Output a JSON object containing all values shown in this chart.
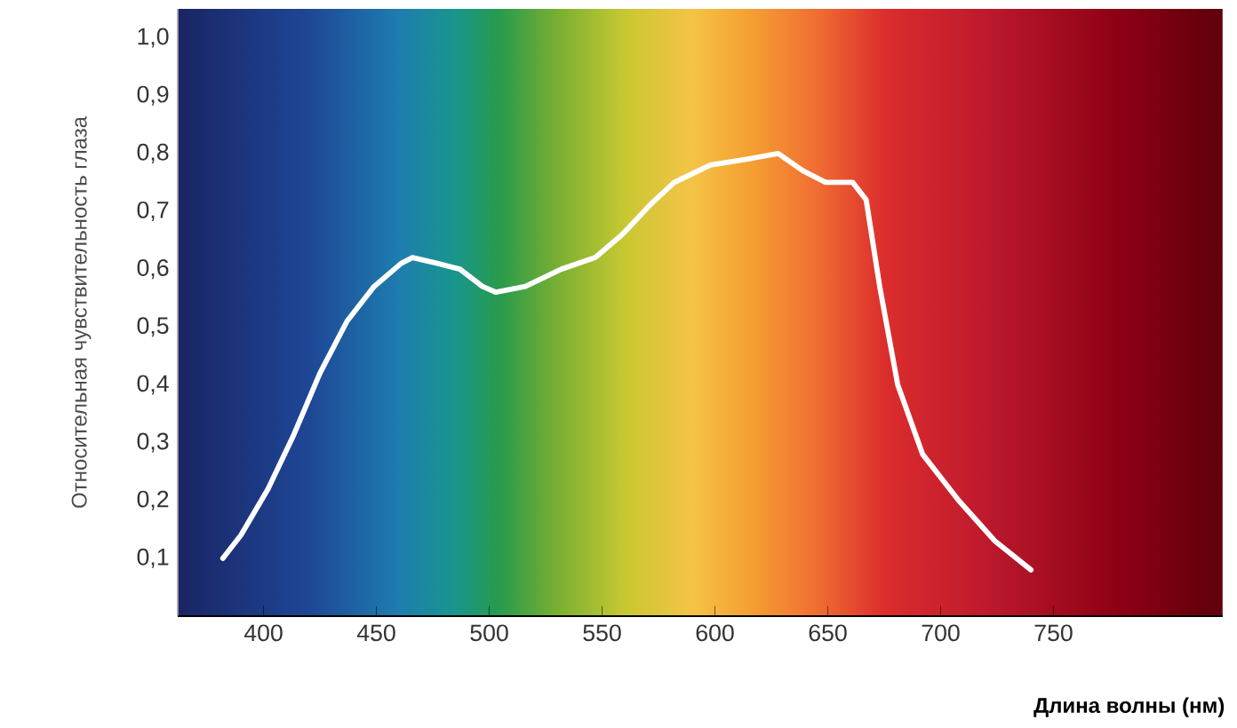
{
  "chart_data": {
    "type": "line",
    "xlabel": "Длина волны (нм)",
    "ylabel": "Относительная чувствительность глаза",
    "x": [
      382,
      390,
      402,
      413,
      425,
      437,
      449,
      461,
      466,
      477,
      487,
      497,
      503,
      516,
      532,
      547,
      559,
      571,
      582,
      598,
      614,
      628,
      639,
      649,
      661,
      667,
      673,
      681,
      692,
      708,
      724,
      740
    ],
    "series": [
      {
        "color": "#ffffff",
        "values": [
          0.1,
          0.14,
          0.22,
          0.31,
          0.42,
          0.51,
          0.57,
          0.61,
          0.62,
          0.61,
          0.6,
          0.57,
          0.56,
          0.57,
          0.6,
          0.62,
          0.66,
          0.71,
          0.75,
          0.78,
          0.79,
          0.8,
          0.77,
          0.75,
          0.75,
          0.72,
          0.57,
          0.4,
          0.28,
          0.2,
          0.13,
          0.08
        ]
      }
    ],
    "xlim": [
      362,
      825
    ],
    "ylim": [
      0,
      1.05
    ],
    "xticks": [
      400,
      450,
      500,
      550,
      600,
      650,
      700,
      750
    ],
    "yticks": [
      {
        "value": 0.1,
        "label": "0,1"
      },
      {
        "value": 0.2,
        "label": "0,2"
      },
      {
        "value": 0.3,
        "label": "0,3"
      },
      {
        "value": 0.4,
        "label": "0,4"
      },
      {
        "value": 0.5,
        "label": "0,5"
      },
      {
        "value": 0.6,
        "label": "0,6"
      },
      {
        "value": 0.7,
        "label": "0,7"
      },
      {
        "value": 0.8,
        "label": "0,8"
      },
      {
        "value": 0.9,
        "label": "0,9"
      },
      {
        "value": 1.0,
        "label": "1,0"
      }
    ],
    "grid": false,
    "marker": "none",
    "line_style": "solid"
  }
}
